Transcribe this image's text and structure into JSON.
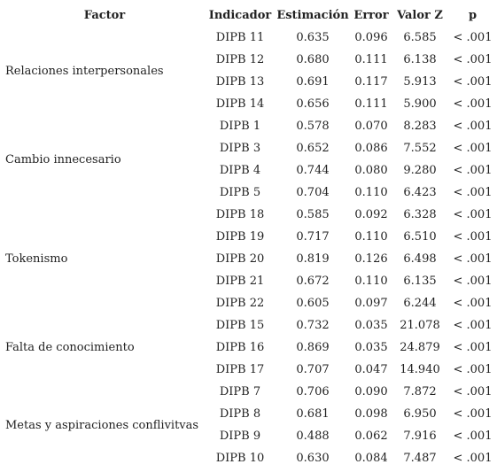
{
  "headers": [
    "Factor",
    "Indicador",
    "Estimación",
    "Error",
    "Valor Z",
    "p"
  ],
  "groups": [
    {
      "factor": "Relaciones interpersonales",
      "rows": [
        [
          "DIPB 11",
          "0.635",
          "0.096",
          "6.585",
          "< .001"
        ],
        [
          "DIPB 12",
          "0.680",
          "0.111",
          "6.138",
          "< .001"
        ],
        [
          "DIPB 13",
          "0.691",
          "0.117",
          "5.913",
          "< .001"
        ],
        [
          "DIPB 14",
          "0.656",
          "0.111",
          "5.900",
          "< .001"
        ]
      ]
    },
    {
      "factor": "Cambio innecesario",
      "rows": [
        [
          "DIPB 1",
          "0.578",
          "0.070",
          "8.283",
          "< .001"
        ],
        [
          "DIPB 3",
          "0.652",
          "0.086",
          "7.552",
          "< .001"
        ],
        [
          "DIPB 4",
          "0.744",
          "0.080",
          "9.280",
          "< .001"
        ],
        [
          "DIPB 5",
          "0.704",
          "0.110",
          "6.423",
          "< .001"
        ]
      ]
    },
    {
      "factor": "Tokenismo",
      "rows": [
        [
          "DIPB 18",
          "0.585",
          "0.092",
          "6.328",
          "< .001"
        ],
        [
          "DIPB 19",
          "0.717",
          "0.110",
          "6.510",
          "< .001"
        ],
        [
          "DIPB 20",
          "0.819",
          "0.126",
          "6.498",
          "< .001"
        ],
        [
          "DIPB 21",
          "0.672",
          "0.110",
          "6.135",
          "< .001"
        ],
        [
          "DIPB 22",
          "0.605",
          "0.097",
          "6.244",
          "< .001"
        ]
      ]
    },
    {
      "factor": "Falta de conocimiento",
      "rows": [
        [
          "DIPB 15",
          "0.732",
          "0.035",
          "21.078",
          "< .001"
        ],
        [
          "DIPB 16",
          "0.869",
          "0.035",
          "24.879",
          "< .001"
        ],
        [
          "DIPB 17",
          "0.707",
          "0.047",
          "14.940",
          "< .001"
        ]
      ]
    },
    {
      "factor": "Metas y aspiraciones conflivitvas",
      "rows": [
        [
          "DIPB 7",
          "0.706",
          "0.090",
          "7.872",
          "< .001"
        ],
        [
          "DIPB 8",
          "0.681",
          "0.098",
          "6.950",
          "< .001"
        ],
        [
          "DIPB 9",
          "0.488",
          "0.062",
          "7.916",
          "< .001"
        ],
        [
          "DIPB 10",
          "0.630",
          "0.084",
          "7.487",
          "< .001"
        ]
      ]
    }
  ]
}
